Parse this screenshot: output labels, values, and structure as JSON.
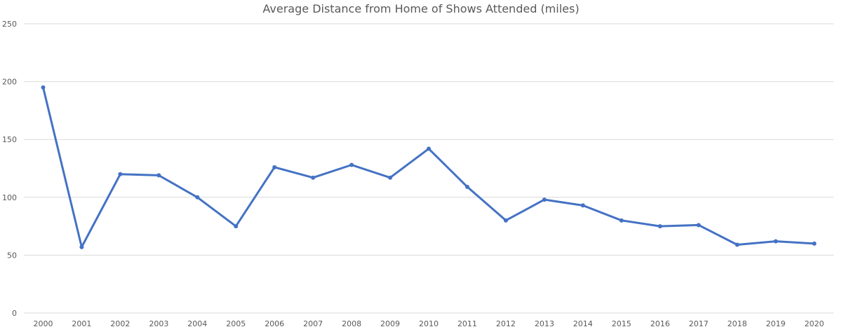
{
  "chart_data": {
    "type": "line",
    "title": "Average Distance from Home of Shows Attended (miles)",
    "xlabel": "",
    "ylabel": "",
    "categories": [
      "2000",
      "2001",
      "2002",
      "2003",
      "2004",
      "2005",
      "2006",
      "2007",
      "2008",
      "2009",
      "2010",
      "2011",
      "2012",
      "2013",
      "2014",
      "2015",
      "2016",
      "2017",
      "2018",
      "2019",
      "2020"
    ],
    "series": [
      {
        "values": [
          195,
          57,
          120,
          119,
          100,
          75,
          126,
          117,
          128,
          117,
          142,
          109,
          80,
          98,
          93,
          80,
          75,
          76,
          59,
          62,
          60
        ]
      }
    ],
    "ylim": [
      0,
      250
    ],
    "yticks": [
      0,
      50,
      100,
      150,
      200,
      250
    ],
    "grid": true,
    "legend": "none",
    "line_color": "#4472C4",
    "grid_color": "#D9D9D9",
    "text_color": "#595959"
  }
}
